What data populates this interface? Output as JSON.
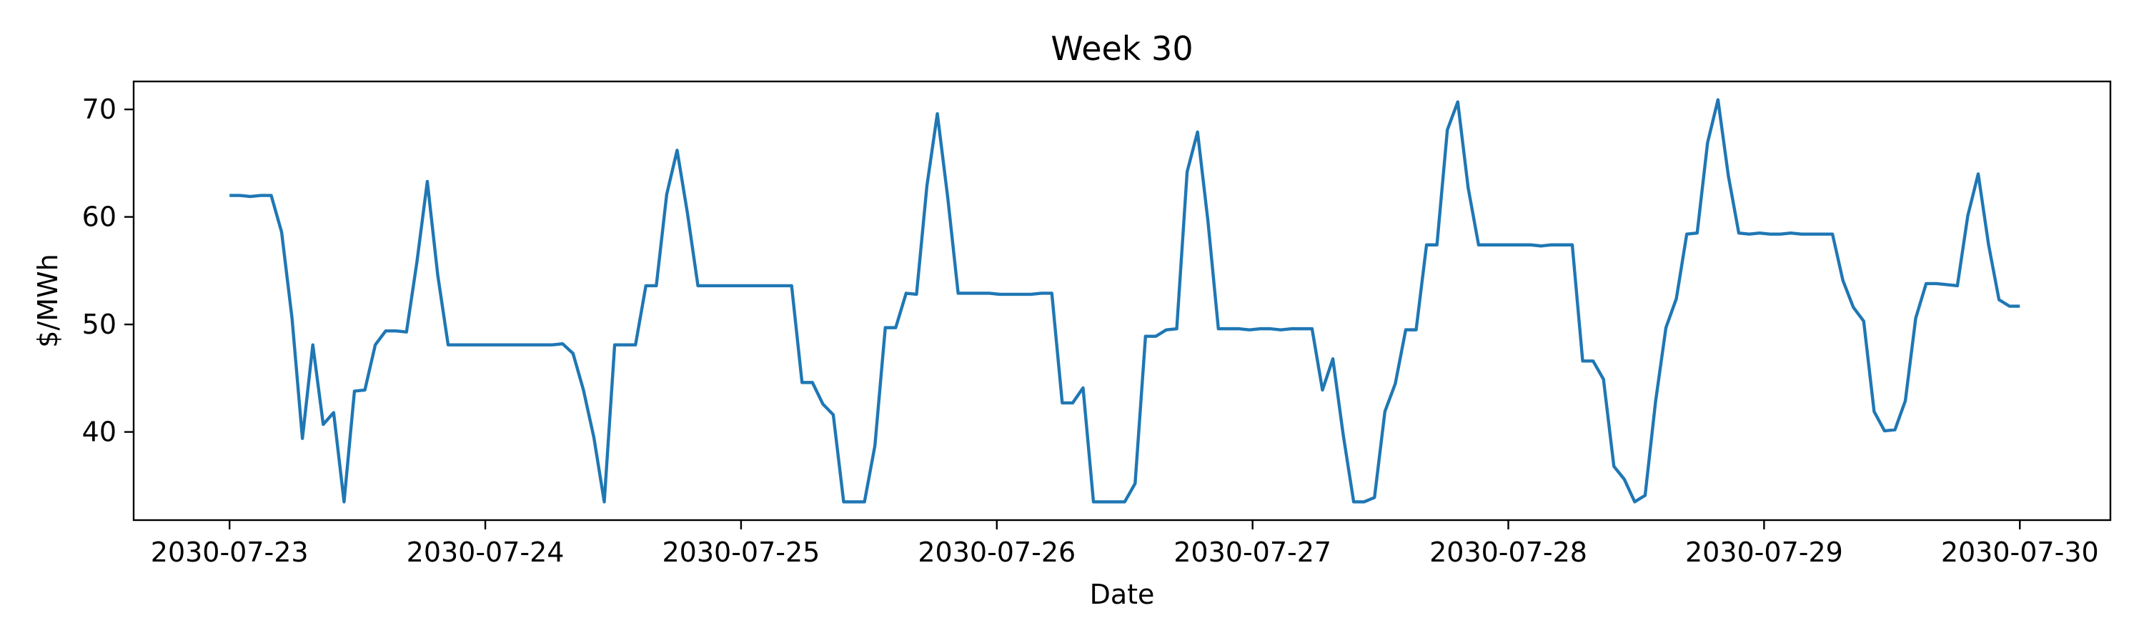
{
  "chart_data": {
    "type": "line",
    "title": "Week 30",
    "xlabel": "Date",
    "ylabel": "$/MWh",
    "x_start": "2030-07-23 00:00",
    "x_end": "2030-07-30 00:00",
    "xlim": [
      "2030-07-22 15:00",
      "2030-07-30 08:30"
    ],
    "ylim": [
      31.8,
      72.6
    ],
    "x_ticks": [
      "2030-07-23",
      "2030-07-24",
      "2030-07-25",
      "2030-07-26",
      "2030-07-27",
      "2030-07-28",
      "2030-07-29",
      "2030-07-30"
    ],
    "y_ticks": [
      40,
      50,
      60,
      70
    ],
    "grid": false,
    "legend": "none",
    "line_color": "#1f77b4",
    "series": [
      {
        "values": [
          62.0,
          62.0,
          61.9,
          62.0,
          62.0,
          58.6,
          50.6,
          39.4,
          48.1,
          40.7,
          41.8,
          33.5,
          43.8,
          43.9,
          48.1,
          49.4,
          49.4,
          49.3,
          55.8,
          63.3,
          54.6,
          48.1,
          48.1,
          48.1,
          48.1,
          48.1,
          48.1,
          48.1,
          48.1,
          48.1,
          48.1,
          48.1,
          48.2,
          47.3,
          43.9,
          39.5,
          33.5,
          48.1,
          48.1,
          48.1,
          53.6,
          53.6,
          62.1,
          66.2,
          60.3,
          53.6,
          53.6,
          53.6,
          53.6,
          53.6,
          53.6,
          53.6,
          53.6,
          53.6,
          53.6,
          44.6,
          44.6,
          42.6,
          41.6,
          33.5,
          33.5,
          33.5,
          38.7,
          49.7,
          49.7,
          52.9,
          52.8,
          62.9,
          69.6,
          61.8,
          52.9,
          52.9,
          52.9,
          52.9,
          52.8,
          52.8,
          52.8,
          52.8,
          52.9,
          52.9,
          42.7,
          42.7,
          44.1,
          33.5,
          33.5,
          33.5,
          33.5,
          35.2,
          48.9,
          48.9,
          49.5,
          49.6,
          64.2,
          67.9,
          59.6,
          49.6,
          49.6,
          49.6,
          49.5,
          49.6,
          49.6,
          49.5,
          49.6,
          49.6,
          49.6,
          43.9,
          46.8,
          39.7,
          33.5,
          33.5,
          33.9,
          41.9,
          44.5,
          49.5,
          49.5,
          57.4,
          57.4,
          68.1,
          70.7,
          62.7,
          57.4,
          57.4,
          57.4,
          57.4,
          57.4,
          57.4,
          57.3,
          57.4,
          57.4,
          57.4,
          46.6,
          46.6,
          44.9,
          36.8,
          35.6,
          33.5,
          34.1,
          42.8,
          49.7,
          52.4,
          58.4,
          58.5,
          66.9,
          70.9,
          63.8,
          58.5,
          58.4,
          58.5,
          58.4,
          58.4,
          58.5,
          58.4,
          58.4,
          58.4,
          58.4,
          54.1,
          51.6,
          50.3,
          41.9,
          40.1,
          40.2,
          42.9,
          50.6,
          53.8,
          53.8,
          53.7,
          53.6,
          60.1,
          64.0,
          57.4,
          52.3,
          51.7,
          51.7
        ]
      }
    ]
  }
}
